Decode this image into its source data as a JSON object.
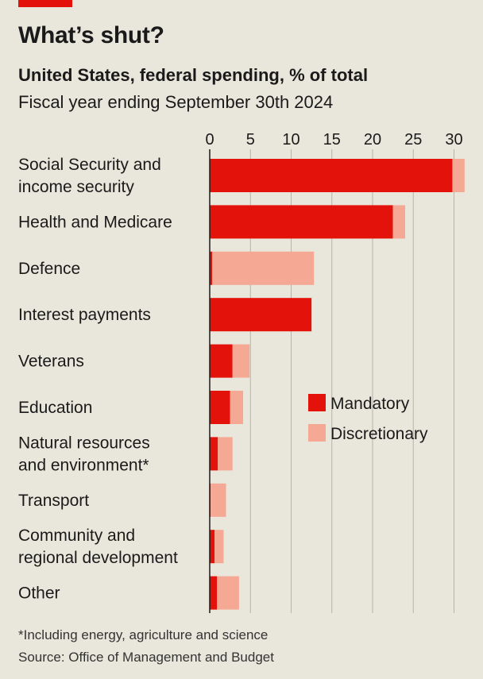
{
  "header": {
    "title": "What’s shut?",
    "subtitle": "United States, federal spending, % of total",
    "period": "Fiscal year ending September 30th 2024"
  },
  "footer": {
    "footnote": "*Including energy, agriculture and science",
    "source": "Source: Office of Management and Budget"
  },
  "colors": {
    "mandatory": "#e3120b",
    "discretionary": "#f5a994",
    "axis": "#1a1a1a",
    "grid": "#b7b3aa",
    "background": "#e9e6db"
  },
  "chart_data": {
    "type": "bar",
    "orientation": "horizontal",
    "stacked": true,
    "categories": [
      [
        "Social Security and",
        "income security"
      ],
      [
        "Health and Medicare"
      ],
      [
        "Defence"
      ],
      [
        "Interest payments"
      ],
      [
        "Veterans"
      ],
      [
        "Education"
      ],
      [
        "Natural resources",
        "and environment*"
      ],
      [
        "Transport"
      ],
      [
        "Community and",
        "regional development"
      ],
      [
        "Other"
      ]
    ],
    "series": [
      {
        "name": "Mandatory",
        "values": [
          29.8,
          22.5,
          0.3,
          12.5,
          2.8,
          2.5,
          1.0,
          0.1,
          0.6,
          0.9
        ]
      },
      {
        "name": "Discretionary",
        "values": [
          1.5,
          1.5,
          12.5,
          0.0,
          2.1,
          1.6,
          1.8,
          1.9,
          1.1,
          2.7
        ]
      }
    ],
    "xlim": [
      0,
      31.5
    ],
    "xticks": [
      0,
      5,
      10,
      15,
      20,
      25,
      30
    ],
    "xaxis_position": "top",
    "grid": true,
    "legend_position": "right"
  }
}
